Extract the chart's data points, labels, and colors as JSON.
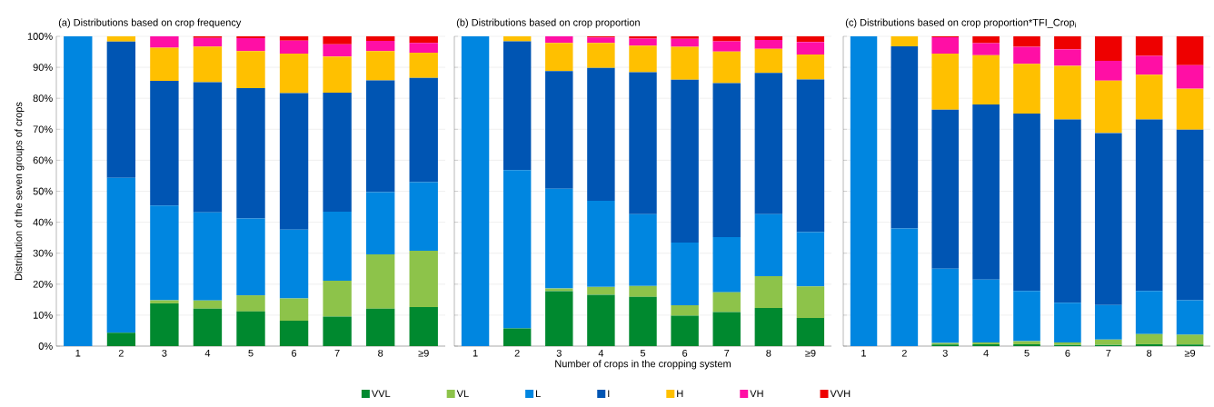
{
  "chart_data": [
    {
      "type": "bar",
      "stacked": true,
      "title": "(a) Distributions based on crop frequency",
      "ylabel": "Distribution of the seven groups of crops",
      "categories": [
        "1",
        "2",
        "3",
        "4",
        "5",
        "6",
        "7",
        "8",
        "≥9"
      ],
      "ylim": [
        0,
        100
      ],
      "yticks": [
        {
          "value": 0,
          "label": "0%"
        },
        {
          "value": 10,
          "label": "10%"
        },
        {
          "value": 20,
          "label": "20%"
        },
        {
          "value": 30,
          "label": "30%"
        },
        {
          "value": 40,
          "label": "40%"
        },
        {
          "value": 50,
          "label": "50%"
        },
        {
          "value": 60,
          "label": "60%"
        },
        {
          "value": 70,
          "label": "70%"
        },
        {
          "value": 80,
          "label": "80%"
        },
        {
          "value": 90,
          "label": "90%"
        },
        {
          "value": 100,
          "label": "100%"
        }
      ],
      "grid": "y",
      "legend": "bottom",
      "series": [
        {
          "name": "VVL",
          "color": "#00892f",
          "values": [
            0,
            4.3,
            13.8,
            12.1,
            11.2,
            8.2,
            9.5,
            12.1,
            12.6
          ]
        },
        {
          "name": "VL",
          "color": "#8dc34a",
          "values": [
            0,
            0,
            1.0,
            2.6,
            5.2,
            7.2,
            11.6,
            17.5,
            18.2
          ]
        },
        {
          "name": "L",
          "color": "#0086e0",
          "values": [
            100,
            50.0,
            30.6,
            28.5,
            24.8,
            22.2,
            22.3,
            20.1,
            22.1
          ]
        },
        {
          "name": "I",
          "color": "#0055b3",
          "values": [
            0,
            44.0,
            40.2,
            42.0,
            42.1,
            44.1,
            38.4,
            36.1,
            33.7
          ]
        },
        {
          "name": "H",
          "color": "#ffc000",
          "values": [
            0,
            1.7,
            10.7,
            11.5,
            11.9,
            12.7,
            11.7,
            9.4,
            8.1
          ]
        },
        {
          "name": "VH",
          "color": "#ff0fa5",
          "values": [
            0,
            0,
            3.7,
            2.8,
            4.2,
            4.2,
            3.9,
            3.3,
            3.2
          ]
        },
        {
          "name": "VVH",
          "color": "#ee0000",
          "values": [
            0,
            0,
            0,
            0.5,
            0.6,
            1.4,
            2.6,
            1.5,
            2.1
          ]
        }
      ]
    },
    {
      "type": "bar",
      "stacked": true,
      "title": "(b) Distributions based on crop proportion",
      "xlabel": "Number of crops in the cropping system",
      "categories": [
        "1",
        "2",
        "3",
        "4",
        "5",
        "6",
        "7",
        "8",
        "≥9"
      ],
      "ylim": [
        0,
        100
      ],
      "yticks": [
        0,
        10,
        20,
        30,
        40,
        50,
        60,
        70,
        80,
        90,
        100
      ],
      "grid": "y",
      "tick_labels": "x",
      "series": [
        {
          "color": "#00892f",
          "values": [
            0,
            5.7,
            17.8,
            16.6,
            15.9,
            9.8,
            11.0,
            12.3,
            9.1
          ]
        },
        {
          "color": "#8dc34a",
          "values": [
            0,
            0,
            0.8,
            2.5,
            3.5,
            3.4,
            6.4,
            10.3,
            10.2
          ]
        },
        {
          "color": "#0086e0",
          "values": [
            100,
            51.1,
            32.2,
            27.8,
            23.2,
            20.2,
            17.8,
            20.0,
            17.5
          ]
        },
        {
          "color": "#0055b3",
          "values": [
            0,
            41.6,
            38.0,
            42.9,
            45.8,
            52.6,
            49.7,
            45.6,
            49.3
          ]
        },
        {
          "color": "#ffc000",
          "values": [
            0,
            1.6,
            9.1,
            8.1,
            8.6,
            10.6,
            10.2,
            7.8,
            8.0
          ]
        },
        {
          "color": "#ff0fa5",
          "values": [
            0,
            0,
            2.1,
            1.7,
            2.3,
            2.6,
            3.3,
            2.8,
            4.1
          ]
        },
        {
          "color": "#ee0000",
          "values": [
            0,
            0,
            0,
            0.4,
            0.7,
            0.8,
            1.6,
            1.2,
            1.8
          ]
        }
      ]
    },
    {
      "type": "bar",
      "stacked": true,
      "title": "(c) Distributions based on crop proportion*TFI_Crop$_{i}$",
      "categories": [
        "1",
        "2",
        "3",
        "4",
        "5",
        "6",
        "7",
        "8",
        "≥9"
      ],
      "ylim": [
        0,
        100
      ],
      "yticks": [
        0,
        10,
        20,
        30,
        40,
        50,
        60,
        70,
        80,
        90,
        100
      ],
      "grid": "y",
      "tick_labels": "x",
      "series": [
        {
          "color": "#00892f",
          "values": [
            0,
            0,
            0.5,
            0.6,
            0.6,
            0.4,
            0.4,
            0.6,
            0.5
          ]
        },
        {
          "color": "#8dc34a",
          "values": [
            0,
            0,
            0.5,
            0.6,
            1.0,
            0.8,
            1.7,
            3.3,
            3.2
          ]
        },
        {
          "color": "#0086e0",
          "values": [
            100,
            38.0,
            24.0,
            20.3,
            16.2,
            12.8,
            11.2,
            13.9,
            11.1
          ]
        },
        {
          "color": "#0055b3",
          "values": [
            0,
            58.8,
            51.3,
            56.5,
            57.3,
            59.2,
            55.5,
            55.4,
            55.1
          ]
        },
        {
          "color": "#ffc000",
          "values": [
            0,
            3.2,
            18.1,
            15.9,
            16.0,
            17.3,
            16.9,
            14.4,
            13.2
          ]
        },
        {
          "color": "#ff0fa5",
          "values": [
            0,
            0,
            5.3,
            3.9,
            5.5,
            5.3,
            6.4,
            6.1,
            7.6
          ]
        },
        {
          "color": "#ee0000",
          "values": [
            0,
            0,
            0.3,
            2.2,
            3.4,
            4.2,
            7.9,
            6.3,
            9.3
          ]
        }
      ]
    }
  ]
}
